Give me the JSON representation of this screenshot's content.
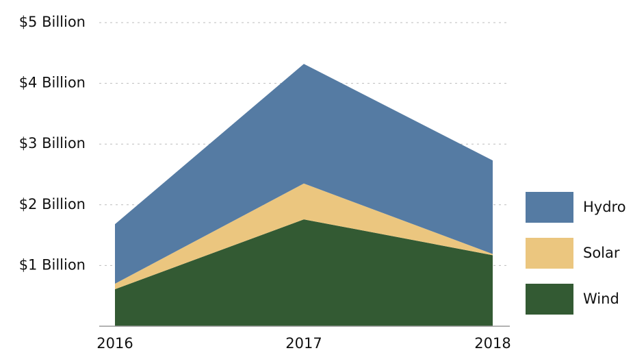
{
  "chart_data": {
    "type": "stacked_area",
    "categories": [
      "2016",
      "2017",
      "2018"
    ],
    "series": [
      {
        "name": "Wind",
        "color": "#335a33",
        "values": [
          0.61,
          1.76,
          1.17
        ]
      },
      {
        "name": "Solar",
        "color": "#ebc67f",
        "values": [
          0.09,
          0.59,
          0.02
        ]
      },
      {
        "name": "Hydro",
        "color": "#557ba3",
        "values": [
          0.98,
          1.97,
          1.54
        ]
      }
    ],
    "ylim": [
      0,
      5
    ],
    "yticks": [
      {
        "value": 1,
        "label": "$1 Billion"
      },
      {
        "value": 2,
        "label": "$2 Billion"
      },
      {
        "value": 3,
        "label": "$3 Billion"
      },
      {
        "value": 4,
        "label": "$4 Billion"
      },
      {
        "value": 5,
        "label": "$5 Billion"
      }
    ],
    "grid": true,
    "legend": "right"
  }
}
